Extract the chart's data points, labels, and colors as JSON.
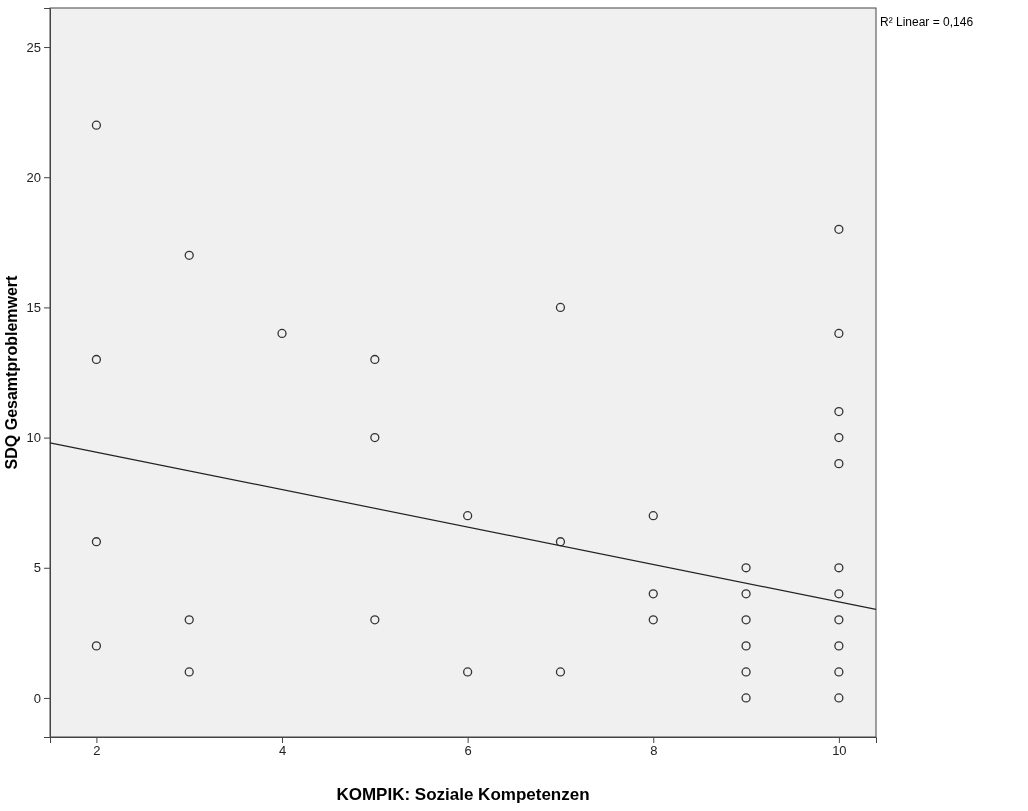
{
  "chart_data": {
    "type": "scatter",
    "xlabel": "KOMPIK: Soziale Kompetenzen",
    "ylabel": "SDQ Gesamtproblemwert",
    "xlim": [
      1.5,
      10.4
    ],
    "ylim": [
      -1.5,
      26.5
    ],
    "xticks": [
      2,
      4,
      6,
      8,
      10
    ],
    "yticks": [
      0,
      5,
      10,
      15,
      20,
      25
    ],
    "grid": false,
    "marker": "circle",
    "annotations": [
      "R² Linear = 0,146"
    ],
    "series": [
      {
        "color": "#333333",
        "x": [
          2,
          2,
          2,
          2,
          3,
          3,
          3,
          4,
          5,
          5,
          5,
          6,
          6,
          7,
          7,
          7,
          8,
          8,
          8,
          9,
          9,
          9,
          9,
          9,
          9,
          10,
          10,
          10,
          10,
          10,
          10,
          10,
          10,
          10,
          10,
          10
        ],
        "values": [
          22,
          13,
          6,
          2,
          17,
          3,
          1,
          14,
          13,
          10,
          3,
          7,
          1,
          15,
          6,
          1,
          7,
          4,
          3,
          5,
          4,
          3,
          2,
          1,
          0,
          18,
          14,
          11,
          10,
          9,
          5,
          4,
          3,
          2,
          1,
          0
        ]
      },
      {
        "type": "line",
        "color": "#222222",
        "line_style": "solid",
        "marker": "none",
        "x": [
          1.5,
          10.4
        ],
        "values": [
          9.8,
          3.4
        ]
      }
    ]
  }
}
